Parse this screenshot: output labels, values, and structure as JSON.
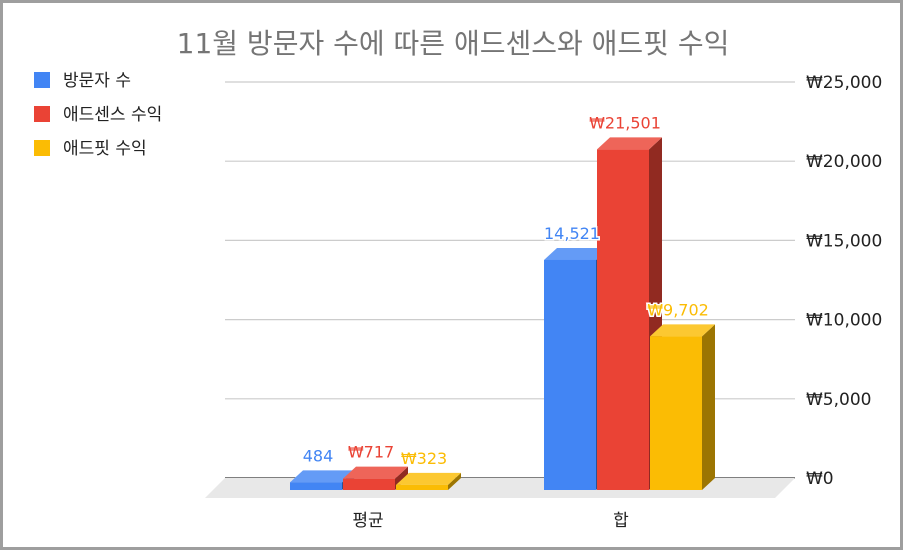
{
  "chart_data": {
    "type": "bar",
    "style": "3d-column",
    "title": "11월 방문자 수에 따른 애드센스와 애드핏 수익",
    "categories": [
      "평균",
      "합"
    ],
    "series": [
      {
        "name": "방문자 수",
        "color": "#4285F4",
        "values": [
          484,
          14521
        ],
        "labels": [
          "484",
          "14,521"
        ]
      },
      {
        "name": "애드센스 수익",
        "color": "#EA4335",
        "values": [
          717,
          21501
        ],
        "labels": [
          "₩717",
          "₩21,501"
        ]
      },
      {
        "name": "애드핏 수익",
        "color": "#FBBC04",
        "values": [
          323,
          9702
        ],
        "labels": [
          "₩323",
          "₩9,702"
        ]
      }
    ],
    "y_axis": {
      "position": "right",
      "ylim": [
        0,
        25000
      ],
      "ticks": [
        0,
        5000,
        10000,
        15000,
        20000,
        25000
      ],
      "tick_labels": [
        "₩0",
        "₩5,000",
        "₩10,000",
        "₩15,000",
        "₩20,000",
        "₩25,000"
      ]
    },
    "grid": true,
    "legend": "top-left"
  }
}
